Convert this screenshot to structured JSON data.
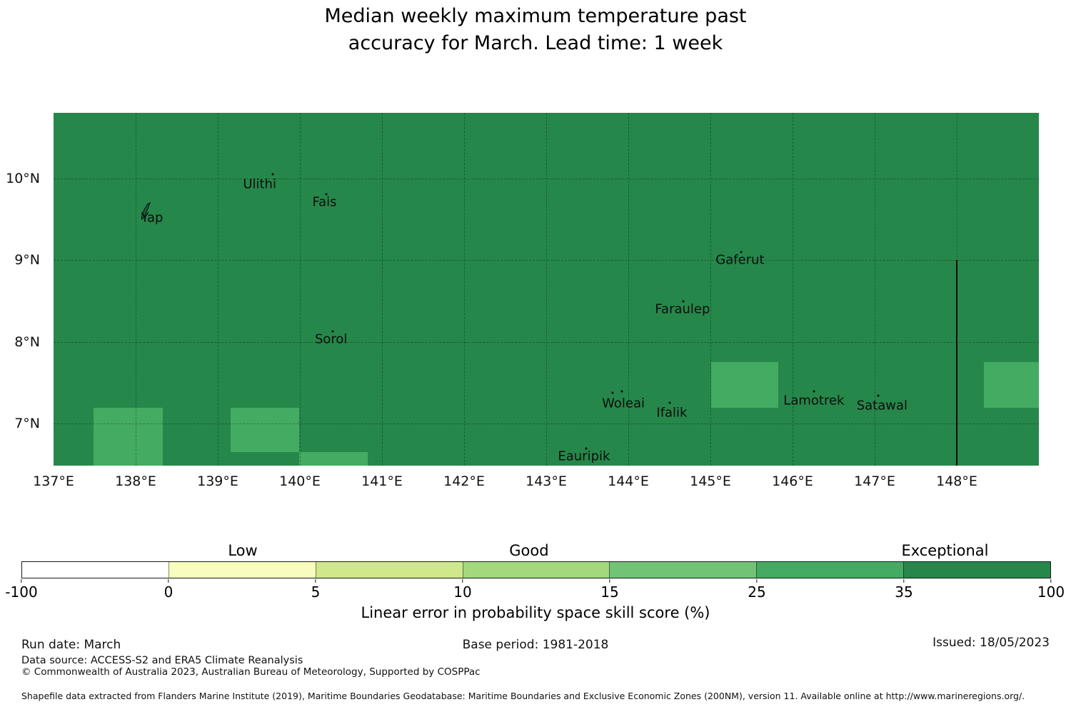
{
  "title_line1": "Median weekly maximum temperature past",
  "title_line2": "accuracy for March. Lead time: 1 week",
  "chart_data": {
    "type": "heatmap",
    "title": "Median weekly maximum temperature past accuracy for March. Lead time: 1 week",
    "colors": {
      "map_background": "#26874a",
      "patch_25_35": "#44ab62",
      "boundary_line": "#0a0a0a"
    },
    "map": {
      "lon_range": [
        137.0,
        149.0
      ],
      "lat_range": [
        6.48,
        10.81
      ],
      "grid_lons": [
        138,
        139,
        140,
        141,
        142,
        143,
        144,
        145,
        146,
        147,
        148
      ],
      "grid_lats": [
        7,
        8,
        9,
        10
      ],
      "x_ticks": [
        {
          "lon": 137,
          "label": "137°E"
        },
        {
          "lon": 138,
          "label": "138°E"
        },
        {
          "lon": 139,
          "label": "139°E"
        },
        {
          "lon": 140,
          "label": "140°E"
        },
        {
          "lon": 141,
          "label": "141°E"
        },
        {
          "lon": 142,
          "label": "142°E"
        },
        {
          "lon": 143,
          "label": "143°E"
        },
        {
          "lon": 144,
          "label": "144°E"
        },
        {
          "lon": 145,
          "label": "145°E"
        },
        {
          "lon": 146,
          "label": "146°E"
        },
        {
          "lon": 147,
          "label": "147°E"
        },
        {
          "lon": 148,
          "label": "148°E"
        }
      ],
      "y_ticks": [
        {
          "lat": 10,
          "label": "10°N"
        },
        {
          "lat": 9,
          "label": "9°N"
        },
        {
          "lat": 8,
          "label": "8°N"
        },
        {
          "lat": 7,
          "label": "7°N"
        }
      ],
      "background_value_range": "35 to 100",
      "patches": [
        {
          "lon": [
            137.49,
            138.33
          ],
          "lat": [
            6.48,
            7.19
          ],
          "value_range": "25 to 35"
        },
        {
          "lon": [
            139.16,
            139.99
          ],
          "lat": [
            6.65,
            7.19
          ],
          "value_range": "25 to 35"
        },
        {
          "lon": [
            139.99,
            140.83
          ],
          "lat": [
            6.48,
            6.65
          ],
          "value_range": "25 to 35"
        },
        {
          "lon": [
            145.01,
            145.83
          ],
          "lat": [
            7.19,
            7.75
          ],
          "value_range": "25 to 35"
        },
        {
          "lon": [
            148.33,
            149.0
          ],
          "lat": [
            7.19,
            7.75
          ],
          "value_range": "25 to 35"
        }
      ],
      "boundary_line": {
        "lon": 148.0,
        "lat_from": 6.48,
        "lat_to": 9.0
      },
      "islands": [
        {
          "name": "Yap",
          "label_lon": 138.2,
          "label_lat": 9.52,
          "dots": [],
          "shape": "yap"
        },
        {
          "name": "Ulithi",
          "label_lon": 139.51,
          "label_lat": 9.93,
          "dots": [
            [
              139.67,
              10.06
            ]
          ]
        },
        {
          "name": "Fais",
          "label_lon": 140.3,
          "label_lat": 9.71,
          "dots": [
            [
              140.32,
              9.81
            ]
          ]
        },
        {
          "name": "Sorol",
          "label_lon": 140.38,
          "label_lat": 8.03,
          "dots": [
            [
              140.4,
              8.13
            ]
          ]
        },
        {
          "name": "Gaferut",
          "label_lon": 145.36,
          "label_lat": 9.0,
          "dots": [
            [
              145.37,
              9.1
            ]
          ]
        },
        {
          "name": "Faraulep",
          "label_lon": 144.66,
          "label_lat": 8.4,
          "dots": [
            [
              144.67,
              8.5
            ]
          ]
        },
        {
          "name": "Woleai",
          "label_lon": 143.94,
          "label_lat": 7.24,
          "dots": [
            [
              143.81,
              7.37
            ],
            [
              143.92,
              7.39
            ]
          ]
        },
        {
          "name": "Ifalik",
          "label_lon": 144.53,
          "label_lat": 7.13,
          "dots": [
            [
              144.5,
              7.25
            ]
          ]
        },
        {
          "name": "Lamotrek",
          "label_lon": 146.26,
          "label_lat": 7.28,
          "dots": [
            [
              146.26,
              7.39
            ]
          ]
        },
        {
          "name": "Satawal",
          "label_lon": 147.09,
          "label_lat": 7.22,
          "dots": [
            [
              147.04,
              7.34
            ]
          ]
        },
        {
          "name": "Eauripik",
          "label_lon": 143.46,
          "label_lat": 6.59,
          "dots": [
            [
              143.49,
              6.69
            ]
          ]
        }
      ]
    },
    "colorbar": {
      "segments": [
        {
          "color": "#ffffff",
          "range": "-100 to 0"
        },
        {
          "color": "#f8fcbc",
          "range": "0 to 5"
        },
        {
          "color": "#cfe88a",
          "range": "5 to 10"
        },
        {
          "color": "#a3d87d",
          "range": "10 to 15"
        },
        {
          "color": "#73c377",
          "range": "15 to 25"
        },
        {
          "color": "#44ab62",
          "range": "25 to 35"
        },
        {
          "color": "#26874a",
          "range": "35 to 100"
        }
      ],
      "tick_labels": [
        "-100",
        "0",
        "5",
        "10",
        "15",
        "25",
        "35",
        "100"
      ],
      "category_labels": [
        {
          "text": "Low",
          "pos": 0.215
        },
        {
          "text": "Good",
          "pos": 0.493
        },
        {
          "text": "Exceptional",
          "pos": 0.897
        }
      ],
      "axis_label": "Linear error in probability space skill score (%)"
    }
  },
  "footer": {
    "run_date": "Run date: March",
    "base_period": "Base period: 1981-2018",
    "issued": "Issued: 18/05/2023",
    "data_source": "Data source: ACCESS-S2 and ERA5 Climate Reanalysis",
    "copyright": "© Commonwealth of Australia 2023, Australian Bureau of Meteorology, Supported by COSPPac",
    "shapefile_note": "Shapefile data extracted from Flanders Marine Institute (2019), Maritime Boundaries Geodatabase: Maritime Boundaries and Exclusive Economic Zones (200NM), version 11. Available online at http://www.marineregions.org/."
  }
}
